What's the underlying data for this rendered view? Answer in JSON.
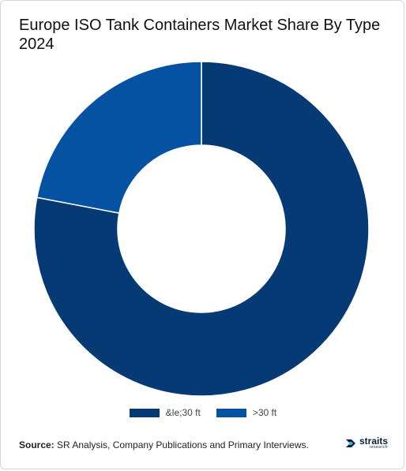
{
  "title": "Europe ISO Tank Containers Market Share By Type 2024",
  "source": {
    "label": "Source:",
    "text": " SR Analysis, Company Publications and Primary Interviews."
  },
  "logo": {
    "word": "straits",
    "sub": "research"
  },
  "colors": {
    "series_1": "#053a75",
    "series_2": "#0552a3"
  },
  "chart_data": {
    "type": "pie",
    "donut": true,
    "title": "Europe ISO Tank Containers Market Share By Type 2024",
    "categories": [
      "&le;30 ft",
      ">30 ft"
    ],
    "values": [
      78,
      22
    ],
    "unit": "%",
    "legend": "bottom",
    "colors": [
      "#053a75",
      "#0552a3"
    ]
  }
}
